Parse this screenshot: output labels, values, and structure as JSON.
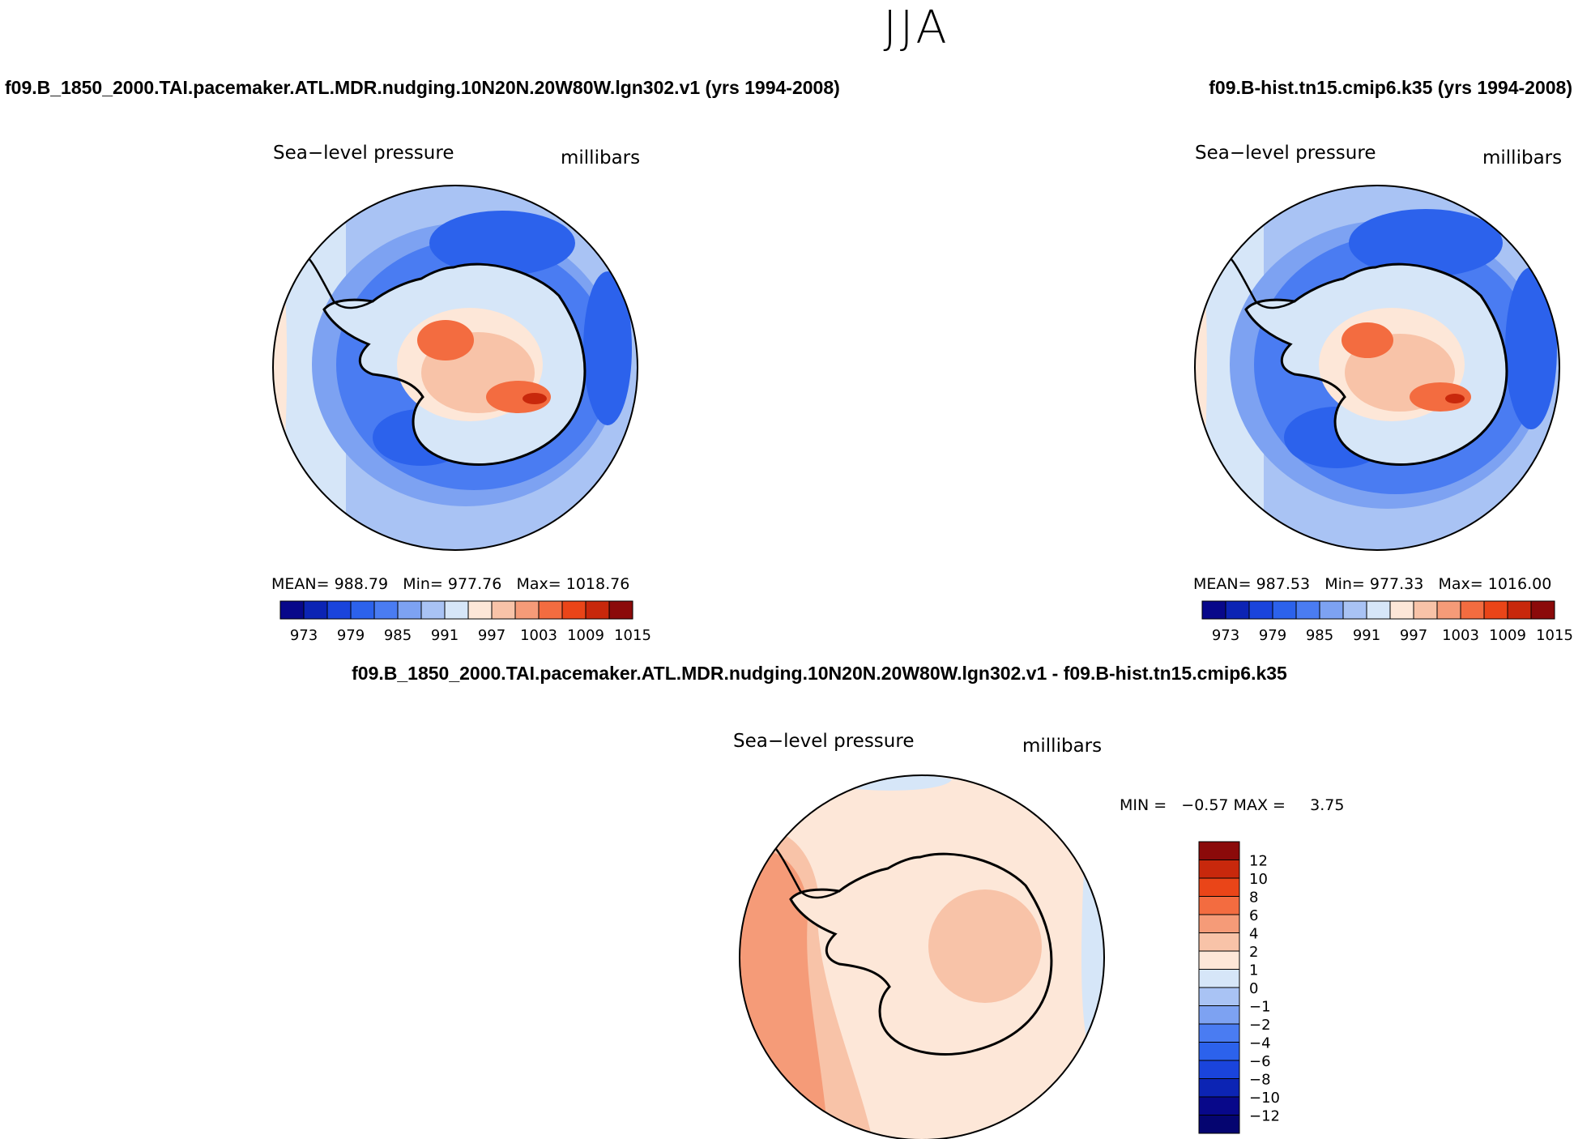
{
  "season": "JJA",
  "variable": {
    "name": "Sea−level pressure",
    "units": "millibars"
  },
  "panels": {
    "case1": {
      "title": "f09.B_1850_2000.TAI.pacemaker.ATL.MDR.nudging.10N20N.20W80W.lgn302.v1 (yrs 1994-2008)",
      "mean_label": "MEAN=",
      "mean": "988.79",
      "min_label": "Min=",
      "min": "977.76",
      "max_label": "Max=",
      "max": "1018.76"
    },
    "case2": {
      "title": "f09.B-hist.tn15.cmip6.k35 (yrs 1994-2008)",
      "mean_label": "MEAN=",
      "mean": "987.53",
      "min_label": "Min=",
      "min": "977.33",
      "max_label": "Max=",
      "max": "1016.00"
    },
    "difference": {
      "title": "f09.B_1850_2000.TAI.pacemaker.ATL.MDR.nudging.10N20N.20W80W.lgn302.v1 - f09.B-hist.tn15.cmip6.k35",
      "minmax_text": "MIN =   −0.57 MAX =     3.75"
    }
  },
  "colorbar_abs": {
    "colors": [
      "#08088a",
      "#0c24b4",
      "#1a44dc",
      "#2c62ec",
      "#4a7cf2",
      "#7da2f2",
      "#a9c3f4",
      "#d6e6f8",
      "#fde7d8",
      "#f8c3a8",
      "#f59b78",
      "#f36c40",
      "#ea4518",
      "#c8280c",
      "#8b0a0a"
    ],
    "tick_labels": [
      "973",
      "979",
      "985",
      "991",
      "997",
      "1003",
      "1009",
      "1015"
    ]
  },
  "colorbar_diff": {
    "colors": [
      "#8b0a0a",
      "#c8280c",
      "#ea4518",
      "#f36c40",
      "#f59b78",
      "#f8c3a8",
      "#fde7d8",
      "#d6e6f8",
      "#a9c3f4",
      "#7da2f2",
      "#4a7cf2",
      "#2c62ec",
      "#1a44dc",
      "#0c24b4",
      "#08088a",
      "#050570"
    ],
    "tick_labels": [
      "12",
      "10",
      "8",
      "6",
      "4",
      "2",
      "1",
      "0",
      "−1",
      "−2",
      "−4",
      "−6",
      "−8",
      "−10",
      "−12"
    ]
  },
  "chart_data": [
    {
      "type": "heatmap",
      "title": "f09.B_1850_2000.TAI.pacemaker.ATL.MDR.nudging.10N20N.20W80W.lgn302.v1 (yrs 1994-2008)",
      "projection": "south polar stereographic",
      "variable": "Sea-level pressure",
      "units": "millibars",
      "levels": [
        973,
        976,
        979,
        982,
        985,
        988,
        991,
        994,
        997,
        1000,
        1003,
        1006,
        1009,
        1012,
        1015
      ],
      "mean": 988.79,
      "min": 977.76,
      "max": 1018.76
    },
    {
      "type": "heatmap",
      "title": "f09.B-hist.tn15.cmip6.k35 (yrs 1994-2008)",
      "projection": "south polar stereographic",
      "variable": "Sea-level pressure",
      "units": "millibars",
      "levels": [
        973,
        976,
        979,
        982,
        985,
        988,
        991,
        994,
        997,
        1000,
        1003,
        1006,
        1009,
        1012,
        1015
      ],
      "mean": 987.53,
      "min": 977.33,
      "max": 1016.0
    },
    {
      "type": "heatmap",
      "title": "f09.B_1850_2000.TAI.pacemaker.ATL.MDR.nudging.10N20N.20W80W.lgn302.v1 - f09.B-hist.tn15.cmip6.k35",
      "projection": "south polar stereographic",
      "variable": "Sea-level pressure",
      "units": "millibars",
      "levels": [
        -12,
        -10,
        -8,
        -6,
        -4,
        -2,
        -1,
        0,
        1,
        2,
        4,
        6,
        8,
        10,
        12
      ],
      "min": -0.57,
      "max": 3.75
    }
  ]
}
